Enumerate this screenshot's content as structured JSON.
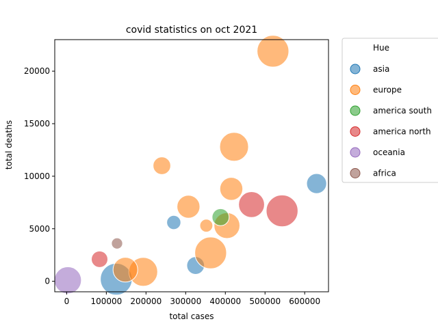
{
  "chart_data": {
    "type": "scatter",
    "title": "covid statistics on oct 2021",
    "xlabel": "total cases",
    "ylabel": "total deaths",
    "xlim": [
      -30000,
      660000
    ],
    "ylim": [
      -1000,
      23000
    ],
    "xticks": [
      0,
      100000,
      200000,
      300000,
      400000,
      500000,
      600000
    ],
    "xtick_labels": [
      "0",
      "100000",
      "200000",
      "300000",
      "400000",
      "500000",
      "600000"
    ],
    "yticks": [
      0,
      5000,
      10000,
      15000,
      20000
    ],
    "ytick_labels": [
      "0",
      "5000",
      "10000",
      "15000",
      "20000"
    ],
    "grid": false,
    "legend": {
      "title": "Hue",
      "placement": "outside-right",
      "entries": [
        "asia",
        "europe",
        "america south",
        "america north",
        "oceania",
        "africa"
      ]
    },
    "colors": {
      "asia": "#1f77b4",
      "europe": "#ff7f0e",
      "america south": "#2ca02c",
      "america north": "#d62728",
      "oceania": "#9467bd",
      "africa": "#8c564b"
    },
    "series": [
      {
        "name": "asia",
        "points": [
          {
            "x": 630000,
            "y": 9300,
            "size": 2
          },
          {
            "x": 270000,
            "y": 5600,
            "size": 1
          },
          {
            "x": 325000,
            "y": 1500,
            "size": 1.6
          },
          {
            "x": 125000,
            "y": 200,
            "size": 4
          }
        ]
      },
      {
        "name": "europe",
        "points": [
          {
            "x": 520000,
            "y": 21900,
            "size": 4
          },
          {
            "x": 422000,
            "y": 12800,
            "size": 3.5
          },
          {
            "x": 240000,
            "y": 11000,
            "size": 1.6
          },
          {
            "x": 415000,
            "y": 8800,
            "size": 2.5
          },
          {
            "x": 307000,
            "y": 7100,
            "size": 2.5
          },
          {
            "x": 352000,
            "y": 5300,
            "size": 0.8
          },
          {
            "x": 404000,
            "y": 5300,
            "size": 3
          },
          {
            "x": 363000,
            "y": 2700,
            "size": 4
          },
          {
            "x": 193000,
            "y": 900,
            "size": 3.5
          },
          {
            "x": 148000,
            "y": 1100,
            "size": 2.8
          }
        ]
      },
      {
        "name": "america south",
        "points": [
          {
            "x": 388000,
            "y": 6100,
            "size": 1.5
          }
        ]
      },
      {
        "name": "america north",
        "points": [
          {
            "x": 466000,
            "y": 7300,
            "size": 3
          },
          {
            "x": 543000,
            "y": 6700,
            "size": 4
          },
          {
            "x": 83000,
            "y": 2100,
            "size": 1.4
          }
        ]
      },
      {
        "name": "oceania",
        "points": [
          {
            "x": 3000,
            "y": 100,
            "size": 3.2
          }
        ]
      },
      {
        "name": "africa",
        "points": [
          {
            "x": 127000,
            "y": 3600,
            "size": 0.5
          }
        ]
      }
    ]
  }
}
